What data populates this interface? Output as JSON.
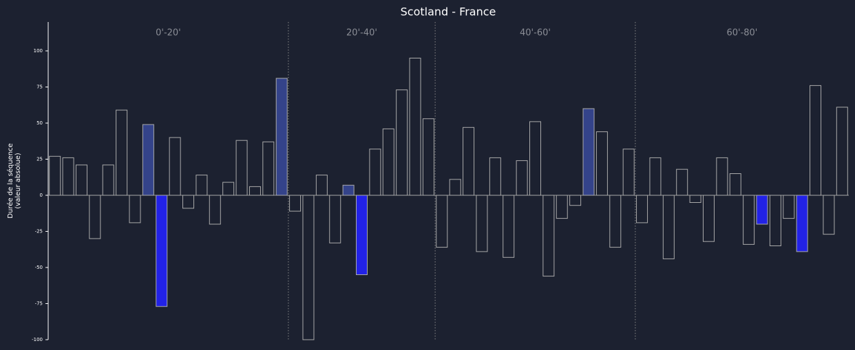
{
  "chart_data": {
    "type": "bar",
    "title": "Scotland - France",
    "y_label": [
      "Durée de la séquence",
      "(valeur absolue)"
    ],
    "categories": [
      null,
      null,
      null,
      null,
      null,
      null,
      null,
      null,
      null,
      null,
      null,
      null,
      null,
      null,
      null,
      null,
      null,
      null,
      null,
      null,
      null,
      null,
      null,
      null,
      null,
      null,
      null,
      null,
      null,
      null,
      null,
      null,
      null,
      null,
      null,
      null,
      null,
      null,
      null,
      null,
      null,
      null,
      null,
      null,
      null,
      null,
      null,
      null,
      null,
      null,
      null,
      null,
      null,
      null,
      null,
      null,
      null,
      null,
      null,
      null
    ],
    "values": [
      27,
      26,
      21,
      -30,
      21,
      59,
      -19,
      49,
      -77,
      40,
      -9,
      14,
      -20,
      9,
      38,
      6,
      37,
      81,
      -11,
      -100,
      14,
      -33,
      7,
      -55,
      32,
      46,
      73,
      95,
      53,
      -36,
      11,
      47,
      -39,
      26,
      -43,
      24,
      51,
      -56,
      -16,
      -7,
      60,
      44,
      -36,
      32,
      -19,
      26,
      -44,
      18,
      -5,
      -32,
      26,
      15,
      -34,
      -20,
      -35,
      -16,
      -39,
      76,
      -27,
      61
    ],
    "colors": [
      "#1c2130",
      "#1c2130",
      "#1c2130",
      "#1c2130",
      "#1c2130",
      "#1c2130",
      "#1c2130",
      "#34438a",
      "#2222e6",
      "#1c2130",
      "#1c2130",
      "#1c2130",
      "#1c2130",
      "#1c2130",
      "#1c2130",
      "#1c2130",
      "#1c2130",
      "#34438a",
      "#1c2130",
      "#1c2130",
      "#1c2130",
      "#1c2130",
      "#34438a",
      "#2222e6",
      "#1c2130",
      "#1c2130",
      "#1c2130",
      "#1c2130",
      "#1c2130",
      "#1c2130",
      "#1c2130",
      "#1c2130",
      "#1c2130",
      "#1c2130",
      "#1c2130",
      "#1c2130",
      "#1c2130",
      "#1c2130",
      "#1c2130",
      "#1c2130",
      "#34438a",
      "#1c2130",
      "#1c2130",
      "#1c2130",
      "#1c2130",
      "#1c2130",
      "#1c2130",
      "#1c2130",
      "#1c2130",
      "#1c2130",
      "#1c2130",
      "#1c2130",
      "#1c2130",
      "#2222e6",
      "#1c2130",
      "#1c2130",
      "#2222e6",
      "#1c2130",
      "#1c2130",
      "#1c2130"
    ],
    "periods": [
      {
        "label": "0'-20'",
        "first": 0,
        "last": 17
      },
      {
        "label": "20'-40'",
        "first": 18,
        "last": 28
      },
      {
        "label": "40'-60'",
        "first": 29,
        "last": 43
      },
      {
        "label": "60'-80'",
        "first": 44,
        "last": 59
      }
    ],
    "ylim": [
      -100,
      120
    ],
    "yticks": [
      -100,
      -75,
      -50,
      -25,
      0,
      25,
      50,
      75,
      100
    ],
    "grid": false
  }
}
